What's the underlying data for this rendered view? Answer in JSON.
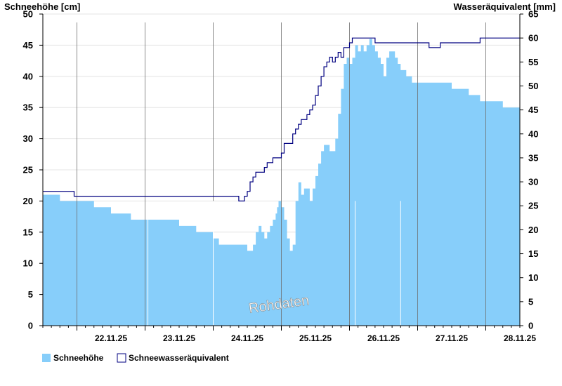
{
  "chart_data": {
    "type": "area",
    "ylabel_left": "Schneehöhe [cm]",
    "ylabel_right": "Wasseräquivalent [mm]",
    "x_tick_labels": [
      "22.11.25",
      "23.11.25",
      "24.11.25",
      "25.11.25",
      "26.11.25",
      "27.11.25",
      "28.11.25"
    ],
    "x_range_days": [
      "21.11.25 12:00",
      "28.11.25 19:00"
    ],
    "y_left_ticks": [
      0,
      5,
      10,
      15,
      20,
      25,
      30,
      35,
      40,
      45,
      50
    ],
    "y_right_ticks": [
      0,
      5,
      10,
      15,
      20,
      25,
      30,
      35,
      40,
      45,
      50,
      55,
      60,
      65
    ],
    "ylim_left": [
      0,
      50
    ],
    "ylim_right": [
      0,
      65
    ],
    "grid": true,
    "watermark": "Rohdaten",
    "series": [
      {
        "name": "Schneehöhe",
        "kind": "area",
        "color": "#87cefa",
        "x_hours": [
          0,
          4,
          6,
          11,
          12,
          18,
          20,
          24,
          29,
          30,
          31,
          35,
          40,
          48,
          50,
          51,
          54,
          55,
          56,
          60,
          62,
          66,
          68,
          72,
          73,
          74,
          75,
          76,
          77,
          78,
          79,
          80,
          81,
          82,
          82.5,
          83,
          84,
          85,
          86,
          87,
          88,
          89,
          90,
          91,
          92,
          93,
          94,
          95,
          96,
          97,
          98,
          99,
          100,
          101,
          102,
          103,
          104,
          105,
          106,
          107,
          108,
          109,
          110,
          111,
          112,
          113,
          114,
          115,
          116,
          117,
          118,
          119,
          120,
          121,
          122,
          123,
          124,
          125,
          126,
          127,
          128,
          129,
          130,
          131,
          132,
          133,
          134,
          136,
          138,
          140,
          142,
          144,
          146,
          148,
          150,
          152,
          154,
          156,
          158,
          160,
          162,
          164,
          166,
          167,
          168
        ],
        "values": [
          21,
          21,
          20,
          20,
          20,
          19,
          19,
          18,
          18,
          18,
          17,
          17,
          17,
          16,
          16,
          16,
          15,
          15,
          15,
          14,
          13,
          13,
          13,
          12,
          12,
          13,
          15,
          16,
          15,
          14,
          15,
          16,
          17,
          18,
          19,
          20,
          19,
          17,
          14,
          12,
          13,
          20,
          23,
          21,
          22,
          22,
          20,
          22,
          24,
          26,
          28,
          29,
          29,
          28,
          28,
          30,
          34,
          38,
          42,
          43,
          42,
          43,
          45,
          44,
          45,
          44,
          45,
          46,
          45,
          44,
          43,
          42,
          40,
          43,
          44,
          44,
          43,
          42,
          41,
          41,
          40,
          40,
          39,
          39,
          39,
          39,
          39,
          39,
          39,
          39,
          39,
          38,
          38,
          38,
          37,
          37,
          36,
          36,
          36,
          36,
          35,
          35,
          35,
          35,
          34
        ]
      },
      {
        "name": "Schneewasseräquivalent",
        "kind": "line",
        "color": "#000080",
        "x_hours": [
          0,
          10,
          11,
          40,
          42,
          43,
          48,
          55,
          68,
          69,
          70,
          71,
          72,
          73,
          74,
          75,
          76,
          77,
          78,
          79,
          80,
          81,
          82,
          83,
          84,
          85,
          86,
          87,
          88,
          89,
          90,
          91,
          92,
          93,
          94,
          95,
          96,
          97,
          98,
          99,
          100,
          101,
          102,
          103,
          104,
          105,
          106,
          107,
          108,
          109,
          110,
          111,
          112,
          113,
          114,
          115,
          116,
          117,
          118,
          119,
          120,
          122,
          124,
          126,
          128,
          130,
          132,
          133,
          134,
          136,
          140,
          144,
          148,
          150,
          152,
          154,
          156,
          158,
          160,
          162,
          164,
          166,
          168
        ],
        "values": [
          28,
          28,
          27,
          27,
          27,
          27,
          27,
          27,
          27,
          26,
          26,
          27,
          28,
          30,
          31,
          32,
          32,
          32,
          33,
          34,
          34,
          35,
          35,
          35,
          36,
          38,
          38,
          38,
          40,
          41,
          42,
          43,
          43,
          44,
          45,
          46,
          48,
          50,
          52,
          54,
          55,
          56,
          55,
          56,
          57,
          56,
          58,
          58,
          59,
          60,
          60,
          60,
          60,
          60,
          60,
          60,
          60,
          59,
          59,
          59,
          59,
          59,
          59,
          59,
          59,
          59,
          59,
          59,
          59,
          58,
          59,
          59,
          59,
          59,
          59,
          60,
          60,
          60,
          60,
          60,
          60,
          60,
          60
        ]
      }
    ]
  }
}
